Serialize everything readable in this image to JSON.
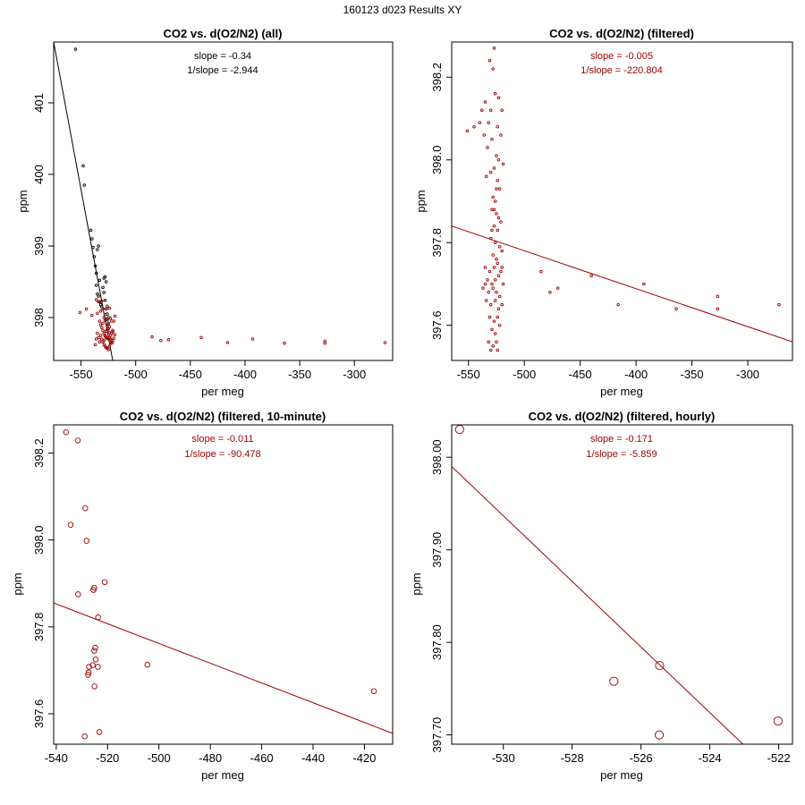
{
  "page_title": "160123   d023   Results XY",
  "colors": {
    "black": "#000000",
    "dark_red": "#9b0000"
  },
  "chart_data": [
    {
      "type": "scatter",
      "title": "CO2 vs. d(O2/N2) (all)",
      "xlabel": "per meg",
      "ylabel": "ppm",
      "xlim": [
        -575,
        -265
      ],
      "ylim": [
        397.4,
        401.85
      ],
      "xticks": [
        -550,
        -500,
        -450,
        -400,
        -350,
        -300
      ],
      "yticks": [
        398,
        399,
        400,
        401
      ],
      "annotations": [
        {
          "text": "slope = -0.34",
          "color": "#000000"
        },
        {
          "text": "1/slope = -2.944",
          "color": "#000000"
        }
      ],
      "fit_line": {
        "slope": -0.34,
        "x1": -575,
        "y1": 401.85,
        "x2": -521,
        "y2": 397.4,
        "color": "#000000"
      },
      "series": [
        {
          "name": "all",
          "color": "#000000",
          "marker_r": 1.3,
          "points": [
            [
              -555,
              401.75
            ],
            [
              -548,
              400.12
            ],
            [
              -547,
              399.85
            ],
            [
              -541,
              399.22
            ],
            [
              -540,
              399.1
            ],
            [
              -539,
              398.98
            ],
            [
              -538,
              398.85
            ],
            [
              -537,
              398.72
            ],
            [
              -536,
              398.62
            ],
            [
              -535,
              398.95
            ],
            [
              -534,
              399.0
            ],
            [
              -533,
              398.52
            ],
            [
              -536,
              398.45
            ],
            [
              -535,
              398.33
            ],
            [
              -534,
              398.3
            ],
            [
              -533,
              398.22
            ],
            [
              -532,
              398.18
            ],
            [
              -531,
              398.15
            ],
            [
              -530,
              398.42
            ],
            [
              -529,
              398.55
            ],
            [
              -528,
              398.57
            ],
            [
              -527,
              398.5
            ],
            [
              -529,
              398.35
            ],
            [
              -528,
              398.24
            ],
            [
              -527,
              398.12
            ],
            [
              -526,
              398.05
            ],
            [
              -525,
              398.0
            ],
            [
              -526,
              397.97
            ],
            [
              -525,
              397.92
            ]
          ]
        },
        {
          "name": "filtered",
          "color": "#9b0000",
          "marker_r": 1.3,
          "points": [
            [
              -551,
              398.07
            ],
            [
              -545,
              398.12
            ],
            [
              -540,
              398.03
            ],
            [
              -536,
              398.25
            ],
            [
              -535,
              398.06
            ],
            [
              -534,
              398.22
            ],
            [
              -532,
              398.09
            ],
            [
              -531,
              398.23
            ],
            [
              -530,
              398.12
            ],
            [
              -529,
              398.0
            ],
            [
              -528,
              398.04
            ],
            [
              -527,
              397.98
            ],
            [
              -526,
              398.16
            ],
            [
              -525,
              397.9
            ],
            [
              -524,
              398.13
            ],
            [
              -523,
              397.99
            ],
            [
              -522,
              397.95
            ],
            [
              -521,
              397.82
            ],
            [
              -520,
              397.95
            ],
            [
              -519,
              398.02
            ],
            [
              -533,
              397.95
            ],
            [
              -532,
              397.9
            ],
            [
              -531,
              397.86
            ],
            [
              -530,
              397.82
            ],
            [
              -529,
              397.78
            ],
            [
              -528,
              397.75
            ],
            [
              -527,
              397.72
            ],
            [
              -526,
              397.71
            ],
            [
              -525,
              397.7
            ],
            [
              -524,
              397.72
            ],
            [
              -523,
              397.75
            ],
            [
              -522,
              397.78
            ],
            [
              -521,
              397.8
            ],
            [
              -532,
              397.75
            ],
            [
              -531,
              397.7
            ],
            [
              -530,
              397.66
            ],
            [
              -529,
              397.62
            ],
            [
              -528,
              397.6
            ],
            [
              -527,
              397.58
            ],
            [
              -526,
              397.57
            ],
            [
              -525,
              397.55
            ],
            [
              -524,
              397.6
            ],
            [
              -523,
              397.65
            ],
            [
              -522,
              397.68
            ],
            [
              -533,
              397.66
            ],
            [
              -534,
              397.72
            ],
            [
              -535,
              397.78
            ],
            [
              -536,
              397.7
            ],
            [
              -537,
              397.62
            ],
            [
              -529,
              397.68
            ],
            [
              -528,
              397.74
            ],
            [
              -527,
              397.81
            ],
            [
              -526,
              397.88
            ],
            [
              -525,
              397.84
            ],
            [
              -524,
              397.79
            ],
            [
              -523,
              397.7
            ],
            [
              -522,
              397.64
            ],
            [
              -521,
              397.66
            ],
            [
              -520,
              397.71
            ],
            [
              -519,
              397.76
            ],
            [
              -530,
              397.92
            ],
            [
              -528,
              397.96
            ],
            [
              -526,
              397.83
            ],
            [
              -524,
              397.87
            ],
            [
              -485,
              397.73
            ],
            [
              -477,
              397.68
            ],
            [
              -470,
              397.69
            ],
            [
              -440,
              397.72
            ],
            [
              -416,
              397.65
            ],
            [
              -393,
              397.7
            ],
            [
              -364,
              397.64
            ],
            [
              -327,
              397.67
            ],
            [
              -327,
              397.64
            ],
            [
              -272,
              397.65
            ]
          ]
        }
      ]
    },
    {
      "type": "scatter",
      "title": "CO2 vs. d(O2/N2) (filtered)",
      "xlabel": "per meg",
      "ylabel": "ppm",
      "xlim": [
        -565,
        -260
      ],
      "ylim": [
        397.515,
        398.285
      ],
      "xticks": [
        -550,
        -500,
        -450,
        -400,
        -350,
        -300
      ],
      "yticks": [
        397.6,
        397.8,
        398.0,
        398.2
      ],
      "ytick_labels": [
        "397.6",
        "397.8",
        "398.0",
        "398.2"
      ],
      "annotations": [
        {
          "text": "slope = -0.005",
          "color": "#9b0000"
        },
        {
          "text": "1/slope = -220.804",
          "color": "#9b0000"
        }
      ],
      "fit_line": {
        "slope": -0.005,
        "x1": -565,
        "y1": 397.84,
        "x2": -260,
        "y2": 397.56,
        "color": "#9b0000"
      },
      "series": [
        {
          "name": "filtered",
          "color": "#9b0000",
          "marker_r": 1.3,
          "points": [
            [
              -527,
              398.27
            ],
            [
              -531,
              398.24
            ],
            [
              -528,
              398.22
            ],
            [
              -538,
              398.12
            ],
            [
              -535,
              398.14
            ],
            [
              -532,
              398.09
            ],
            [
              -530,
              398.12
            ],
            [
              -526,
              398.16
            ],
            [
              -523,
              398.15
            ],
            [
              -520,
              398.12
            ],
            [
              -545,
              398.08
            ],
            [
              -540,
              398.09
            ],
            [
              -536,
              398.06
            ],
            [
              -533,
              398.03
            ],
            [
              -529,
              398.05
            ],
            [
              -524,
              398.08
            ],
            [
              -521,
              398.06
            ],
            [
              -551,
              398.07
            ],
            [
              -525,
              398.01
            ],
            [
              -523,
              398.0
            ],
            [
              -519,
              397.99
            ],
            [
              -534,
              397.96
            ],
            [
              -530,
              397.97
            ],
            [
              -527,
              397.98
            ],
            [
              -524,
              397.95
            ],
            [
              -528,
              397.91
            ],
            [
              -526,
              397.9
            ],
            [
              -522,
              397.93
            ],
            [
              -529,
              397.88
            ],
            [
              -525,
              397.87
            ],
            [
              -523,
              397.86
            ],
            [
              -527,
              397.84
            ],
            [
              -524,
              397.83
            ],
            [
              -521,
              397.85
            ],
            [
              -530,
              397.81
            ],
            [
              -526,
              397.8
            ],
            [
              -522,
              397.79
            ],
            [
              -528,
              397.77
            ],
            [
              -525,
              397.76
            ],
            [
              -520,
              397.78
            ],
            [
              -535,
              397.74
            ],
            [
              -531,
              397.73
            ],
            [
              -527,
              397.74
            ],
            [
              -524,
              397.75
            ],
            [
              -521,
              397.73
            ],
            [
              -533,
              397.71
            ],
            [
              -529,
              397.7
            ],
            [
              -526,
              397.71
            ],
            [
              -523,
              397.72
            ],
            [
              -519,
              397.7
            ],
            [
              -537,
              397.69
            ],
            [
              -532,
              397.68
            ],
            [
              -528,
              397.69
            ],
            [
              -525,
              397.68
            ],
            [
              -522,
              397.67
            ],
            [
              -534,
              397.66
            ],
            [
              -530,
              397.65
            ],
            [
              -526,
              397.66
            ],
            [
              -523,
              397.64
            ],
            [
              -520,
              397.65
            ],
            [
              -531,
              397.62
            ],
            [
              -527,
              397.61
            ],
            [
              -524,
              397.62
            ],
            [
              -529,
              397.59
            ],
            [
              -526,
              397.58
            ],
            [
              -522,
              397.6
            ],
            [
              -532,
              397.56
            ],
            [
              -528,
              397.55
            ],
            [
              -525,
              397.56
            ],
            [
              -530,
              397.54
            ],
            [
              -524,
              397.54
            ],
            [
              -535,
              397.7
            ],
            [
              -520,
              397.74
            ],
            [
              -529,
              397.83
            ],
            [
              -527,
              397.88
            ],
            [
              -525,
              397.93
            ],
            [
              -485,
              397.73
            ],
            [
              -477,
              397.68
            ],
            [
              -470,
              397.69
            ],
            [
              -440,
              397.72
            ],
            [
              -416,
              397.65
            ],
            [
              -393,
              397.7
            ],
            [
              -364,
              397.64
            ],
            [
              -327,
              397.67
            ],
            [
              -327,
              397.64
            ],
            [
              -272,
              397.65
            ]
          ]
        }
      ]
    },
    {
      "type": "scatter",
      "title": "CO2 vs. d(O2/N2) (filtered, 10-minute)",
      "xlabel": "per meg",
      "ylabel": "ppm",
      "xlim": [
        -541,
        -409
      ],
      "ylim": [
        397.53,
        398.265
      ],
      "xticks": [
        -540,
        -520,
        -500,
        -480,
        -460,
        -440,
        -420
      ],
      "yticks": [
        397.6,
        397.8,
        398.0,
        398.2
      ],
      "ytick_labels": [
        "397.6",
        "397.8",
        "398.0",
        "398.2"
      ],
      "annotations": [
        {
          "text": "slope = -0.011",
          "color": "#9b0000"
        },
        {
          "text": "1/slope = -90.478",
          "color": "#9b0000"
        }
      ],
      "fit_line": {
        "slope": -0.011,
        "x1": -541,
        "y1": 397.855,
        "x2": -409,
        "y2": 397.555,
        "color": "#9b0000"
      },
      "series": [
        {
          "name": "10-minute",
          "color": "#9b0000",
          "marker_r": 2.8,
          "points": [
            [
              -536.2,
              398.248
            ],
            [
              -531.6,
              398.229
            ],
            [
              -534.4,
              398.035
            ],
            [
              -528.7,
              398.073
            ],
            [
              -528.2,
              397.998
            ],
            [
              -531.5,
              397.875
            ],
            [
              -525.5,
              397.885
            ],
            [
              -525.2,
              397.89
            ],
            [
              -521.1,
              397.903
            ],
            [
              -523.7,
              397.822
            ],
            [
              -525.2,
              397.745
            ],
            [
              -524.8,
              397.752
            ],
            [
              -524.6,
              397.725
            ],
            [
              -525.8,
              397.712
            ],
            [
              -523.8,
              397.708
            ],
            [
              -527.2,
              397.708
            ],
            [
              -527.4,
              397.695
            ],
            [
              -527.6,
              397.69
            ],
            [
              -525.1,
              397.663
            ],
            [
              -504.5,
              397.713
            ],
            [
              -528.9,
              397.548
            ],
            [
              -523.2,
              397.558
            ],
            [
              -416.3,
              397.652
            ]
          ]
        }
      ]
    },
    {
      "type": "scatter",
      "title": "CO2 vs. d(O2/N2) (filtered, hourly)",
      "xlabel": "per meg",
      "ylabel": "ppm",
      "xlim": [
        -531.5,
        -521.6
      ],
      "ylim": [
        397.69,
        398.035
      ],
      "xticks": [
        -530,
        -528,
        -526,
        -524,
        -522
      ],
      "yticks": [
        397.7,
        397.8,
        397.9,
        398.0
      ],
      "ytick_labels": [
        "397.70",
        "397.80",
        "397.90",
        "398.00"
      ],
      "annotations": [
        {
          "text": "slope = -0.171",
          "color": "#9b0000"
        },
        {
          "text": "1/slope = -5.859",
          "color": "#9b0000"
        }
      ],
      "fit_line": {
        "slope": -0.171,
        "x1": -531.5,
        "y1": 397.99,
        "x2": -523.04,
        "y2": 397.69,
        "color": "#9b0000"
      },
      "series": [
        {
          "name": "hourly",
          "color": "#9b0000",
          "marker_r": 4.6,
          "points": [
            [
              -531.27,
              398.03
            ],
            [
              -526.79,
              397.758
            ],
            [
              -525.46,
              397.775
            ],
            [
              -525.47,
              397.7
            ],
            [
              -522.02,
              397.715
            ]
          ]
        }
      ]
    }
  ]
}
